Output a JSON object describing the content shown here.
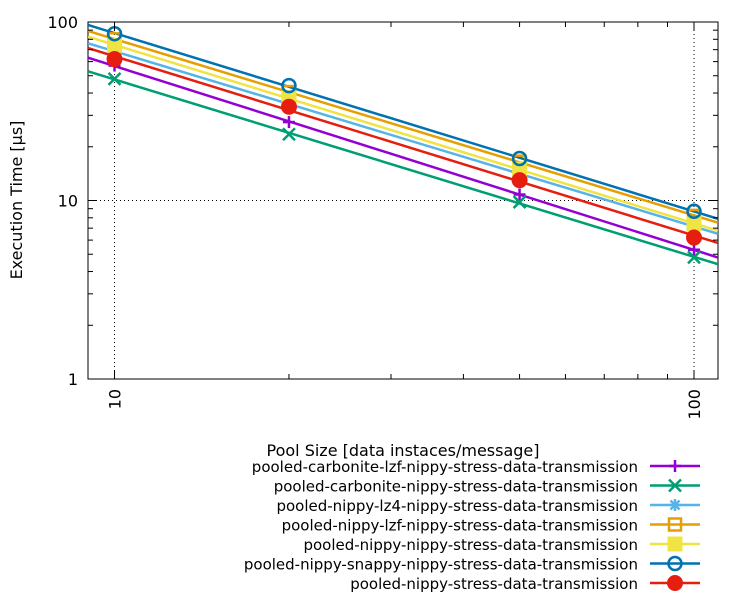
{
  "chart_data": {
    "type": "line",
    "title": "",
    "xlabel": "Pool Size [data instaces/message]",
    "ylabel": "Execution Time [µs]",
    "x_scale": "log",
    "y_scale": "log",
    "xlim": [
      9,
      110
    ],
    "ylim": [
      1,
      100
    ],
    "x_ticks": [
      10,
      100
    ],
    "y_ticks": [
      1,
      10,
      100
    ],
    "x_tick_labels": [
      "10",
      "100"
    ],
    "y_tick_labels": [
      "1",
      "10",
      "100"
    ],
    "grid": true,
    "legend_position": "bottom",
    "x": [
      10,
      20,
      50,
      100
    ],
    "series": [
      {
        "name": "pooled-carbonite-lzf-nippy-stress-data-transmission",
        "values": [
          57,
          27.5,
          10.8,
          5.3
        ],
        "color": "#9400d3",
        "marker": "plus"
      },
      {
        "name": "pooled-carbonite-nippy-stress-data-transmission",
        "values": [
          48,
          23.5,
          9.8,
          4.8
        ],
        "color": "#009e73",
        "marker": "cross"
      },
      {
        "name": "pooled-nippy-lz4-nippy-stress-data-transmission",
        "values": [
          68,
          35,
          14.2,
          7.1
        ],
        "color": "#56b4e9",
        "marker": "star"
      },
      {
        "name": "pooled-nippy-lzf-nippy-stress-data-transmission",
        "values": [
          80,
          40.5,
          16.5,
          8.2
        ],
        "color": "#e69f00",
        "marker": "square-open"
      },
      {
        "name": "pooled-nippy-nippy-stress-data-transmission",
        "values": [
          74,
          37.5,
          15.0,
          7.4
        ],
        "color": "#f0e442",
        "marker": "square-filled"
      },
      {
        "name": "pooled-nippy-snappy-nippy-stress-data-transmission",
        "values": [
          86,
          44,
          17.2,
          8.7
        ],
        "color": "#0072b2",
        "marker": "circle-open"
      },
      {
        "name": "pooled-nippy-stress-data-transmission",
        "values": [
          62,
          33.5,
          13.0,
          6.2
        ],
        "color": "#e51e10",
        "marker": "circle-filled"
      }
    ]
  }
}
